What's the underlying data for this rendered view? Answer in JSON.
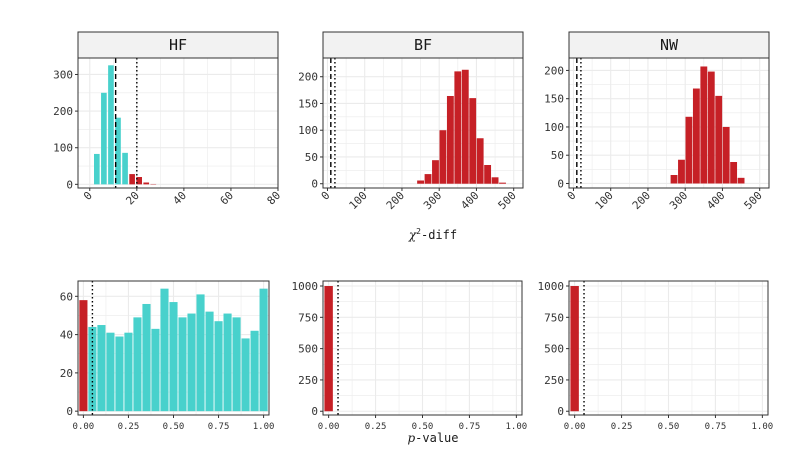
{
  "colors": {
    "teal": "#48D1CC",
    "red": "#C62026",
    "grid": "#EBEBEB",
    "strip_fill": "#F2F2F2",
    "border": "#333333"
  },
  "xlabels": {
    "top_prefix": "χ",
    "top_sup": "2",
    "top_suffix": "-diff",
    "bottom_prefix": "p",
    "bottom_suffix": "-value"
  },
  "chart_data": [
    {
      "type": "bar",
      "panel": "HF",
      "title": "HF",
      "xlim": [
        -5,
        80
      ],
      "ylim": [
        -10,
        345
      ],
      "xticks": [
        "0",
        "20",
        "40",
        "60",
        "80"
      ],
      "yticks": [
        "0",
        "100",
        "200",
        "300"
      ],
      "x": [
        3,
        6,
        9,
        12,
        15,
        18,
        21,
        24,
        27
      ],
      "values": [
        83,
        250,
        325,
        182,
        86,
        28,
        20,
        5,
        1
      ],
      "bar_colors": [
        "teal",
        "teal",
        "teal",
        "teal",
        "teal",
        "red",
        "red",
        "red",
        "red"
      ],
      "vlines": [
        {
          "x": 11,
          "style": "dashed"
        },
        {
          "x": 20,
          "style": "dotted"
        }
      ],
      "grid": true
    },
    {
      "type": "bar",
      "panel": "BF",
      "title": "BF",
      "xlim": [
        -12,
        525
      ],
      "ylim": [
        -8,
        235
      ],
      "xticks": [
        "0",
        "100",
        "200",
        "300",
        "400",
        "500"
      ],
      "yticks": [
        "0",
        "50",
        "100",
        "150",
        "200"
      ],
      "x": [
        250,
        270,
        290,
        310,
        330,
        350,
        370,
        390,
        410,
        430,
        450,
        470
      ],
      "values": [
        6,
        18,
        44,
        100,
        164,
        210,
        213,
        160,
        85,
        35,
        12,
        2
      ],
      "bar_colors": [
        "red",
        "red",
        "red",
        "red",
        "red",
        "red",
        "red",
        "red",
        "red",
        "red",
        "red",
        "red"
      ],
      "vlines": [
        {
          "x": 9,
          "style": "dashed"
        },
        {
          "x": 20,
          "style": "dotted"
        }
      ],
      "grid": true
    },
    {
      "type": "bar",
      "panel": "NW",
      "title": "NW",
      "xlim": [
        -12,
        525
      ],
      "ylim": [
        -8,
        222
      ],
      "xticks": [
        "0",
        "100",
        "200",
        "300",
        "400",
        "500"
      ],
      "yticks": [
        "0",
        "50",
        "100",
        "150",
        "200"
      ],
      "x": [
        270,
        290,
        310,
        330,
        350,
        370,
        390,
        410,
        430,
        450
      ],
      "values": [
        15,
        42,
        118,
        168,
        207,
        198,
        155,
        100,
        38,
        10
      ],
      "bar_colors": [
        "red",
        "red",
        "red",
        "red",
        "red",
        "red",
        "red",
        "red",
        "red",
        "red"
      ],
      "vlines": [
        {
          "x": 9,
          "style": "dashed"
        },
        {
          "x": 20,
          "style": "dotted"
        }
      ],
      "grid": true
    },
    {
      "type": "bar",
      "panel": "HF-p",
      "xlim": [
        -0.03,
        1.03
      ],
      "ylim": [
        -2,
        68
      ],
      "xticks": [
        "0.00",
        "0.25",
        "0.50",
        "0.75",
        "1.00"
      ],
      "yticks": [
        "0",
        "20",
        "40",
        "60"
      ],
      "x": [
        0.0,
        0.05,
        0.1,
        0.15,
        0.2,
        0.25,
        0.3,
        0.35,
        0.4,
        0.45,
        0.5,
        0.55,
        0.6,
        0.65,
        0.7,
        0.75,
        0.8,
        0.85,
        0.9,
        0.95,
        1.0
      ],
      "values": [
        58,
        44,
        45,
        41,
        39,
        41,
        49,
        56,
        43,
        64,
        57,
        49,
        51,
        61,
        52,
        47,
        51,
        49,
        38,
        42,
        64
      ],
      "bar_colors": [
        "red",
        "teal",
        "teal",
        "teal",
        "teal",
        "teal",
        "teal",
        "teal",
        "teal",
        "teal",
        "teal",
        "teal",
        "teal",
        "teal",
        "teal",
        "teal",
        "teal",
        "teal",
        "teal",
        "teal",
        "teal"
      ],
      "vlines": [
        {
          "x": 0.05,
          "style": "dotted"
        }
      ],
      "grid": true
    },
    {
      "type": "bar",
      "panel": "BF-p",
      "xlim": [
        -0.03,
        1.03
      ],
      "ylim": [
        -30,
        1040
      ],
      "xticks": [
        "0.00",
        "0.25",
        "0.50",
        "0.75",
        "1.00"
      ],
      "yticks": [
        "0",
        "250",
        "500",
        "750",
        "1000"
      ],
      "x": [
        0.0
      ],
      "values": [
        1000
      ],
      "bar_colors": [
        "red"
      ],
      "vlines": [
        {
          "x": 0.05,
          "style": "dotted"
        }
      ],
      "grid": true
    },
    {
      "type": "bar",
      "panel": "NW-p",
      "xlim": [
        -0.03,
        1.03
      ],
      "ylim": [
        -30,
        1040
      ],
      "xticks": [
        "0.00",
        "0.25",
        "0.50",
        "0.75",
        "1.00"
      ],
      "yticks": [
        "0",
        "250",
        "500",
        "750",
        "1000"
      ],
      "x": [
        0.0
      ],
      "values": [
        1000
      ],
      "bar_colors": [
        "red"
      ],
      "vlines": [
        {
          "x": 0.05,
          "style": "dotted"
        }
      ],
      "grid": true
    }
  ]
}
